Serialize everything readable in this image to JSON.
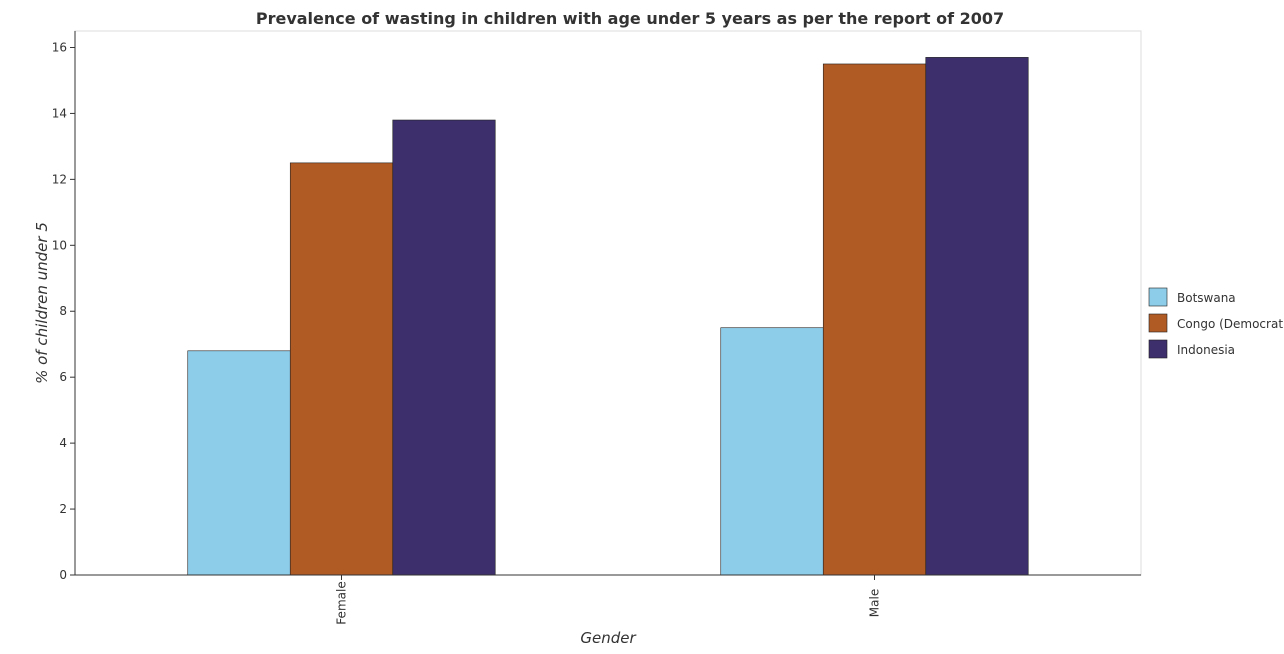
{
  "chart_data": {
    "type": "bar",
    "title": "Prevalence of wasting in children with age under 5 years as per the report of 2007",
    "xlabel": "Gender",
    "ylabel": "% of children under 5",
    "categories": [
      "Female",
      "Male"
    ],
    "series": [
      {
        "name": "Botswana",
        "color": "#8ecdea",
        "values": [
          6.8,
          7.5
        ]
      },
      {
        "name": "Congo (Democratic)",
        "color": "#b05a24",
        "values": [
          12.5,
          15.5
        ]
      },
      {
        "name": "Indonesia",
        "color": "#3c2f6b",
        "values": [
          13.8,
          15.7
        ]
      }
    ],
    "ylim": [
      0,
      16.5
    ],
    "yticks": [
      "0",
      "2",
      "4",
      "6",
      "8",
      "10",
      "12",
      "14",
      "16"
    ],
    "legend_position": "right",
    "grid": false
  }
}
